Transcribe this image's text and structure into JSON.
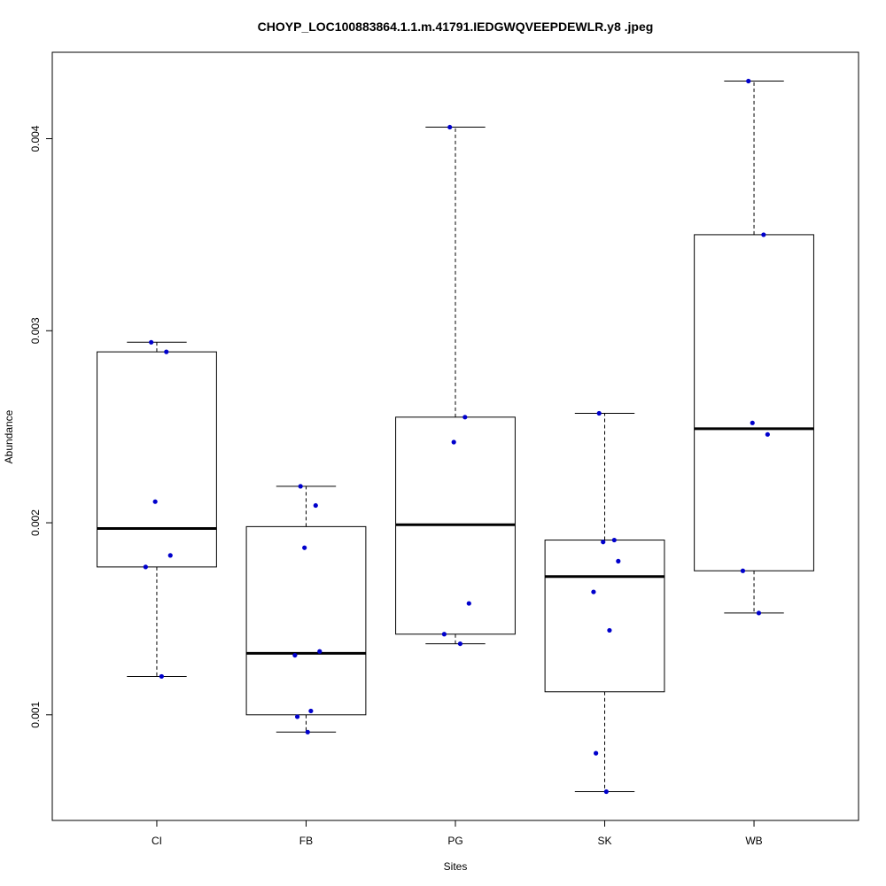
{
  "chart_data": {
    "type": "boxplot",
    "title": "CHOYP_LOC100883864.1.1.m.41791.IEDGWQVEEPDEWLR.y8 .jpeg",
    "xlabel": "Sites",
    "ylabel": "Abundance",
    "ylim": [
      0.00045,
      0.00445
    ],
    "yticks": [
      0.001,
      0.002,
      0.003,
      0.004
    ],
    "ytick_labels": [
      "0.001",
      "0.002",
      "0.003",
      "0.004"
    ],
    "grid": false,
    "colors": {
      "points": "#0000cc",
      "box": "#000000"
    },
    "categories": [
      "CI",
      "FB",
      "PG",
      "SK",
      "WB"
    ],
    "boxes": [
      {
        "category": "CI",
        "whisker_low": 0.0012,
        "q1": 0.00177,
        "median": 0.00197,
        "q3": 0.00289,
        "whisker_high": 0.00294,
        "points": [
          0.00294,
          0.00289,
          0.00211,
          0.00183,
          0.00177,
          0.0012
        ]
      },
      {
        "category": "FB",
        "whisker_low": 0.00091,
        "q1": 0.001,
        "median": 0.00132,
        "q3": 0.00198,
        "whisker_high": 0.00219,
        "points": [
          0.00219,
          0.00209,
          0.00187,
          0.00133,
          0.00131,
          0.00102,
          0.00099,
          0.00091
        ]
      },
      {
        "category": "PG",
        "whisker_low": 0.00137,
        "q1": 0.00142,
        "median": 0.00199,
        "q3": 0.00255,
        "whisker_high": 0.00406,
        "points": [
          0.00406,
          0.00255,
          0.00242,
          0.00158,
          0.00142,
          0.00137
        ]
      },
      {
        "category": "SK",
        "whisker_low": 0.0006,
        "q1": 0.00112,
        "median": 0.00172,
        "q3": 0.00191,
        "whisker_high": 0.00257,
        "points": [
          0.00257,
          0.00191,
          0.0019,
          0.0018,
          0.00164,
          0.00144,
          0.0008,
          0.0006
        ]
      },
      {
        "category": "WB",
        "whisker_low": 0.00153,
        "q1": 0.00175,
        "median": 0.00249,
        "q3": 0.0035,
        "whisker_high": 0.0043,
        "points": [
          0.0043,
          0.0035,
          0.00252,
          0.00246,
          0.00175,
          0.00153
        ]
      }
    ]
  }
}
